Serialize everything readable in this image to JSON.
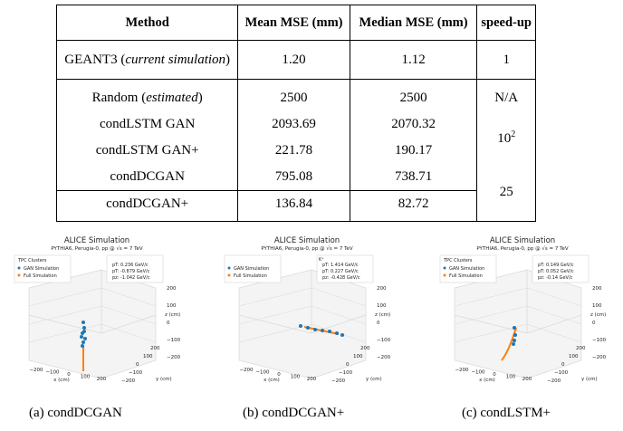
{
  "table": {
    "headers": [
      "Method",
      "Mean MSE (mm)",
      "Median MSE (mm)",
      "speed-up"
    ],
    "baseline": {
      "method": "GEANT3",
      "method_note": "current simulation",
      "mean": "1.20",
      "median": "1.12",
      "speedup": "1"
    },
    "rows": [
      {
        "method": "Random",
        "method_note": "estimated",
        "mean": "2500",
        "median": "2500",
        "speedup": "N/A"
      },
      {
        "method": "condLSTM GAN",
        "mean": "2093.69",
        "median": "2070.32"
      },
      {
        "method": "condLSTM GAN+",
        "mean": "221.78",
        "median": "190.17"
      },
      {
        "method": "condDCGAN",
        "mean": "795.08",
        "median": "738.71"
      },
      {
        "method": "condDCGAN+",
        "mean": "136.84",
        "median": "82.72"
      }
    ],
    "speedup_lstm": {
      "base": "10",
      "exp": "2"
    },
    "speedup_dcgan": "25"
  },
  "figures": [
    {
      "title": "ALICE Simulation",
      "subtitle": "PYTHIA6, Perugia-0, pp @ √s = 7 TeV",
      "legend_title": "TPC Clusters",
      "legend": [
        "GAN Simulation",
        "Full Simulation"
      ],
      "particle": "",
      "momentum": [
        "pT: 0.236 GeV/c",
        "pT: -0.879 GeV/c",
        "pz: -1.042 GeV/c"
      ],
      "z_ticks": [
        "200",
        "100",
        "0",
        "−100",
        "−200"
      ],
      "z_label": "z (cm)",
      "x_ticks": [
        "−200",
        "−100",
        "0",
        "100",
        "200"
      ],
      "x_label": "x (cm)",
      "y_ticks": [
        "−200",
        "−100",
        "0",
        "100",
        "200"
      ],
      "y_label": "y (cm)",
      "caption": "(a)  condDCGAN"
    },
    {
      "title": "ALICE Simulation",
      "subtitle": "PYTHIA6, Perugia-0, pp @ √s = 7 TeV",
      "legend_title": "",
      "legend": [
        "GAN Simulation",
        "Full Simulation"
      ],
      "particle": "K⁺",
      "momentum": [
        "pT: 1.414 GeV/c",
        "pT: 0.227 GeV/c",
        "pz: -0.428 GeV/c"
      ],
      "z_ticks": [
        "200",
        "100",
        "0",
        "−100",
        "−200"
      ],
      "z_label": "z (cm)",
      "x_ticks": [
        "−200",
        "−100",
        "0",
        "100",
        "200"
      ],
      "x_label": "x (cm)",
      "y_ticks": [
        "−200",
        "−100",
        "0",
        "100",
        "200"
      ],
      "y_label": "y (cm)",
      "caption": "(b)  condDCGAN+"
    },
    {
      "title": "ALICE Simulation",
      "subtitle": "PYTHIA6, Perugia-0, pp @ √s = 7 TeV",
      "legend_title": "TPC Clusters",
      "legend": [
        "GAN Simulation",
        "Full Simulation"
      ],
      "particle": "",
      "momentum": [
        "pT: 0.149 GeV/c",
        "pT: 0.052 GeV/c",
        "pz: -0.14 GeV/c"
      ],
      "z_ticks": [
        "200",
        "100",
        "0",
        "−100",
        "−200"
      ],
      "z_label": "z (cm)",
      "x_ticks": [
        "−200",
        "−100",
        "0",
        "100",
        "200"
      ],
      "x_label": "x (cm)",
      "y_ticks": [
        "−200",
        "−100",
        "0",
        "100",
        "200"
      ],
      "y_label": "y (cm)",
      "caption": "(c)  condLSTM+"
    }
  ],
  "colors": {
    "gan": "#1f77b4",
    "full": "#ff7f0e",
    "grid": "#d9d9d9"
  }
}
